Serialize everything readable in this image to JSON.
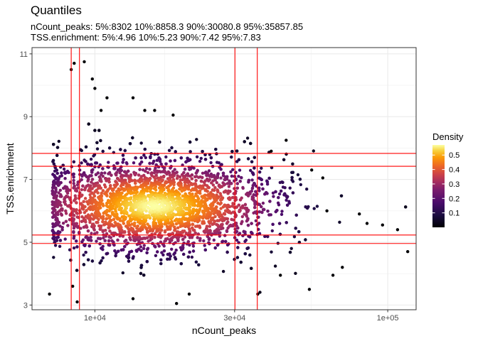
{
  "chart_data": {
    "type": "scatter",
    "title": "Quantiles",
    "subtitle_lines": [
      "nCount_peaks: 5%:8302 10%:8858.3 90%:30080.8 95%:35857.85",
      "TSS.enrichment: 5%:4.96 10%:5.23 90%:7.42 95%:7.83"
    ],
    "xlabel": "nCount_peaks",
    "ylabel": "TSS.enrichment",
    "x_scale": "log10",
    "xlim": [
      6100,
      125000
    ],
    "ylim": [
      2.85,
      11.2
    ],
    "x_ticks": [
      {
        "value": 10000,
        "label": "1e+04"
      },
      {
        "value": 30000,
        "label": "3e+04"
      },
      {
        "value": 100000,
        "label": "1e+05"
      }
    ],
    "y_ticks": [
      {
        "value": 3,
        "label": "3"
      },
      {
        "value": 5,
        "label": "5"
      },
      {
        "value": 7,
        "label": "7"
      },
      {
        "value": 9,
        "label": "9"
      },
      {
        "value": 11,
        "label": "11"
      }
    ],
    "vlines": [
      8302,
      8858.3,
      30080.8,
      35857.85
    ],
    "hlines": [
      4.96,
      5.23,
      7.42,
      7.83
    ],
    "line_color": "#ff0000",
    "color_scale": "inferno",
    "legend": {
      "title": "Density",
      "position": "right",
      "ticks": [
        {
          "value": 0.1,
          "label": "0.1"
        },
        {
          "value": 0.2,
          "label": "0.2"
        },
        {
          "value": 0.3,
          "label": "0.3"
        },
        {
          "value": 0.4,
          "label": "0.4"
        },
        {
          "value": 0.5,
          "label": "0.5"
        }
      ],
      "range": [
        0.0,
        0.57
      ]
    },
    "grid": true,
    "outlier_points": [
      [
        8500,
        10.7
      ],
      [
        9200,
        10.75
      ],
      [
        8300,
        10.5
      ],
      [
        9800,
        10.2
      ],
      [
        10000,
        9.9
      ],
      [
        11000,
        9.6
      ],
      [
        13500,
        9.6
      ],
      [
        14800,
        9.2
      ],
      [
        16000,
        9.2
      ],
      [
        18500,
        9.05
      ],
      [
        10500,
        9.2
      ],
      [
        45000,
        8.25
      ],
      [
        40000,
        7.9
      ],
      [
        55000,
        7.3
      ],
      [
        60000,
        7.05
      ],
      [
        62000,
        6.0
      ],
      [
        80000,
        5.9
      ],
      [
        85000,
        5.6
      ],
      [
        96000,
        5.55
      ],
      [
        108000,
        5.4
      ],
      [
        117000,
        4.7
      ],
      [
        7000,
        3.35
      ],
      [
        8400,
        3.6
      ],
      [
        8700,
        3.1
      ],
      [
        13500,
        3.2
      ],
      [
        19000,
        3.05
      ],
      [
        21000,
        3.35
      ],
      [
        36000,
        3.35
      ],
      [
        54000,
        3.5
      ],
      [
        65000,
        3.95
      ],
      [
        70000,
        4.2
      ],
      [
        43000,
        3.95
      ]
    ],
    "cloud": {
      "x_center": 16000,
      "x_log_sd": 0.2,
      "y_center": 6.15,
      "y_sd": 0.73,
      "n_points": 5000
    }
  }
}
